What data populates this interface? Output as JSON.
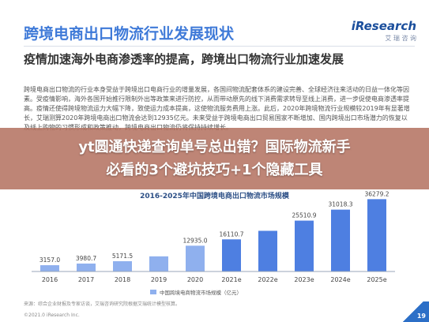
{
  "header": {
    "title": "跨境电商出口物流行业发展现状",
    "logo": "iResearch",
    "logo_sub": "艾 瑞 咨 询"
  },
  "subtitle": "疫情加速海外电商渗透率的提高，跨境出口物流行业加速发展",
  "body_text": "跨境电商出口物流的行业本身受益于跨境出口电商行业的增量发展，各国间物流配套体系的建设完善、全球经济往来活动的日益一体化等因素。受疫情影响，海外各国开始推行限制外出等政策来进行防控，从而带动原先的线下消费需求转导至线上消费，进一步促使电商渗透率提高。疫情还使得跨境物流运力大幅下降，致使运力成本提高，这使物流服务费用上涨。此后，2020年跨境物流行业规模较2019年有显著增长，艾瑞测算2020年跨境电商出口物流会达到12935亿元。未来受益于跨境电商出口贸易国家不断增加、国内跨境出口市场潜力的恢复以及线上购物的习惯形成和政策推动，跨境电商出口物流仍将保持持续增长。",
  "banner": {
    "line1": "yt圆通快递查询单号总出错？国际物流新手",
    "line2": "必看的3个避坑技巧+1个隐藏工具"
  },
  "chart_data": {
    "type": "bar",
    "title": "2016-2025年中国跨境电商出口物流市场规模",
    "categories": [
      "2016",
      "2017",
      "2018",
      "2019",
      "2020",
      "2021e",
      "2022e",
      "2023e",
      "2024e",
      "2025e"
    ],
    "series": [
      {
        "name": "中国跨境电商物流市场规模（亿元）",
        "values": [
          3157.0,
          3980.7,
          5171.5,
          7598.0,
          12935.0,
          16110.7,
          20398.0,
          25510.9,
          31018.3,
          36279.2
        ],
        "labels": [
          "3157.0",
          "3980.7",
          "5171.5",
          "",
          "12935.0",
          "16110.7",
          "",
          "25510.9",
          "31018.3",
          "36279.2"
        ]
      }
    ],
    "ylim": [
      0,
      38000
    ],
    "grid": false,
    "legend": "bottom",
    "colors": {
      "bar": "#8fb0ee",
      "bar_forecast": "#4e7fe1"
    }
  },
  "footer": {
    "source": "来源：综合企业财报及专家访谈，艾瑞咨询研究院根据艾瑞统计模型核算。",
    "copyright": "©2021.0 iResearch Inc.",
    "page": "19"
  }
}
